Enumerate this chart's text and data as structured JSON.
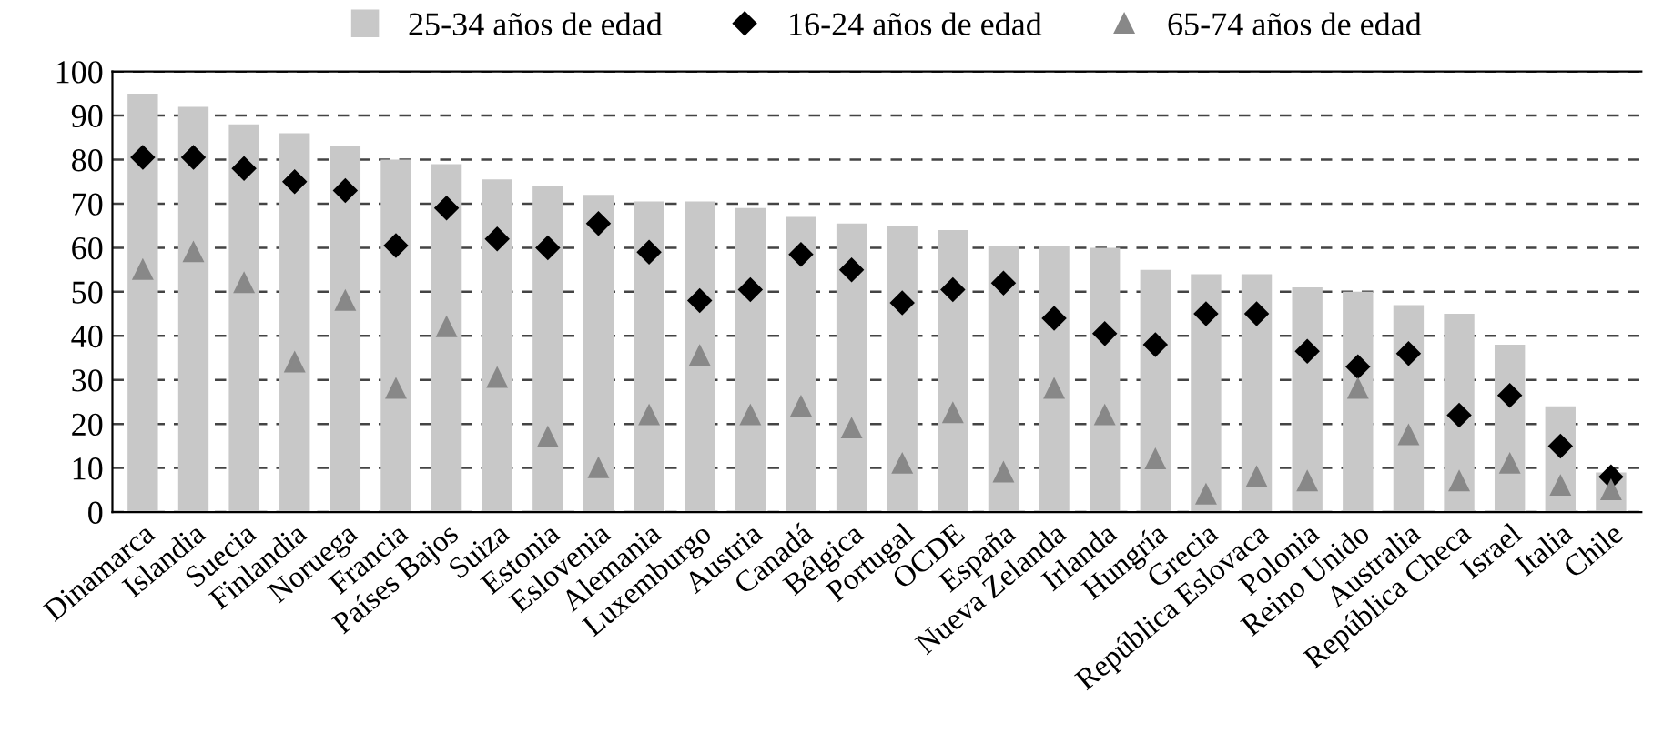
{
  "chart_data": {
    "type": "bar",
    "categories": [
      "Dinamarca",
      "Islandia",
      "Suecia",
      "Finlandia",
      "Noruega",
      "Francia",
      "Países Bajos",
      "Suiza",
      "Estonia",
      "Eslovenia",
      "Alemania",
      "Luxemburgo",
      "Austria",
      "Canadá",
      "Bélgica",
      "Portugal",
      "OCDE",
      "España",
      "Nueva Zelanda",
      "Irlanda",
      "Hungría",
      "Grecia",
      "República Eslovaca",
      "Polonia",
      "Reino Unido",
      "Australia",
      "República Checa",
      "Israel",
      "Italia",
      "Chile"
    ],
    "series": [
      {
        "name": "25-34 años de edad",
        "color": "#c8c8c8",
        "values": [
          95,
          92,
          88,
          86,
          83,
          80,
          79,
          75.5,
          74,
          72,
          70.5,
          70.5,
          69,
          67,
          65.5,
          65,
          64,
          60.5,
          60.5,
          60,
          55,
          54,
          54,
          51,
          50,
          47,
          45,
          38,
          24,
          9
        ]
      },
      {
        "name": "16-24 años de edad",
        "type": "scatter",
        "marker": "diamond",
        "color": "#000000",
        "values": [
          80.5,
          80.5,
          78,
          75,
          73,
          60.5,
          69,
          62,
          60,
          65.5,
          59,
          48,
          50.5,
          58.5,
          55,
          47.5,
          50.5,
          52,
          44,
          40.5,
          38,
          45,
          45,
          36.5,
          33,
          36,
          22,
          26.5,
          15,
          8
        ]
      },
      {
        "name": "65-74 años de edad",
        "type": "scatter",
        "marker": "triangle",
        "color": "#888888",
        "values": [
          55,
          59,
          52,
          34,
          48,
          28,
          42,
          30.5,
          17,
          10,
          22,
          35.5,
          22,
          24,
          19,
          11,
          22.5,
          9,
          28,
          22,
          12,
          4,
          8,
          7,
          28,
          17.5,
          7,
          11,
          6,
          5
        ]
      }
    ],
    "ylim": [
      0,
      100
    ],
    "yticks": [
      0,
      10,
      20,
      30,
      40,
      50,
      60,
      70,
      80,
      90,
      100
    ],
    "grid": "y",
    "legend": "top"
  }
}
